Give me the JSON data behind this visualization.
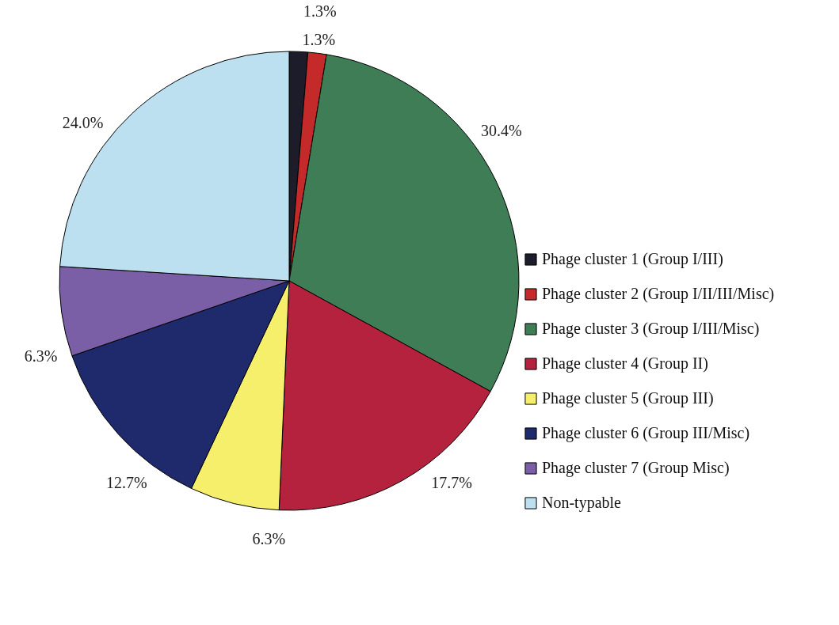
{
  "chart_data": {
    "type": "pie",
    "categories": [
      "Phage cluster 1 (Group I/III)",
      "Phage cluster 2 (Group I/II/III/Misc)",
      "Phage cluster 3 (Group I/III/Misc)",
      "Phage cluster 4 (Group II)",
      "Phage cluster 5 (Group III)",
      "Phage cluster 6 (Group III/Misc)",
      "Phage cluster 7 (Group Misc)",
      "Non-typable"
    ],
    "values": [
      1.3,
      1.3,
      30.4,
      17.7,
      6.3,
      12.7,
      6.3,
      24.0
    ],
    "value_labels": [
      "1.3%",
      "1.3%",
      "30.4%",
      "17.7%",
      "6.3%",
      "12.7%",
      "6.3%",
      "24.0%"
    ],
    "colors": [
      "#1c1c2a",
      "#c42a2a",
      "#3e7d55",
      "#b4223e",
      "#f6ef6c",
      "#1e2a6c",
      "#7a5fa6",
      "#bde0f0"
    ],
    "legend": "right"
  }
}
